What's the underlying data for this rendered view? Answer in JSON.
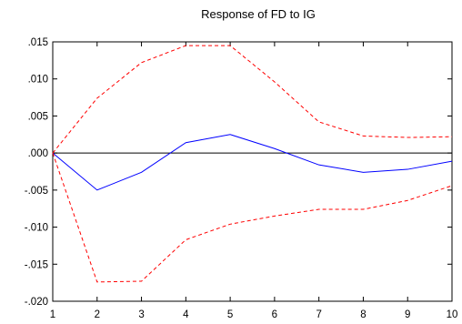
{
  "chart_data": {
    "type": "line",
    "title": "Response of FD to IG",
    "xlabel": "",
    "ylabel": "",
    "x": [
      1,
      2,
      3,
      4,
      5,
      6,
      7,
      8,
      9,
      10
    ],
    "xlim": [
      1,
      10
    ],
    "ylim": [
      -0.02,
      0.015
    ],
    "y_ticks": [
      ".015",
      ".010",
      ".005",
      ".000",
      "-.005",
      "-.010",
      "-.015",
      "-.020"
    ],
    "y_tick_values": [
      0.015,
      0.01,
      0.005,
      0.0,
      -0.005,
      -0.01,
      -0.015,
      -0.02
    ],
    "x_ticks": [
      "1",
      "2",
      "3",
      "4",
      "5",
      "6",
      "7",
      "8",
      "9",
      "10"
    ],
    "grid": false,
    "zero_line": true,
    "series": [
      {
        "values": [
          0.0,
          -0.005,
          -0.0026,
          0.0014,
          0.0025,
          0.0006,
          -0.0016,
          -0.0026,
          -0.0022,
          -0.0011
        ],
        "color": "#0000ff",
        "style": "solid"
      },
      {
        "values": [
          0.0,
          0.0074,
          0.0122,
          0.0145,
          0.0145,
          0.0096,
          0.0042,
          0.0023,
          0.0021,
          0.0022
        ],
        "color": "#ff0000",
        "style": "dashed"
      },
      {
        "values": [
          0.0,
          -0.0174,
          -0.0173,
          -0.0117,
          -0.0096,
          -0.0085,
          -0.0076,
          -0.0076,
          -0.0064,
          -0.0044
        ],
        "color": "#ff0000",
        "style": "dashed"
      }
    ],
    "zero_line_color": "#000000"
  }
}
